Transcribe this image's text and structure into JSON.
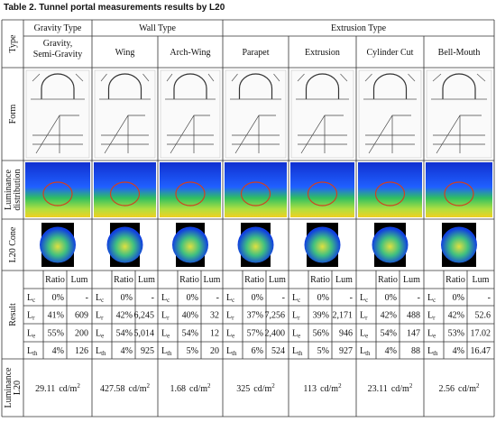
{
  "title": "Table 2. Tunnel portal measurements results by L20",
  "row_headers": {
    "type": "Type",
    "form": "Form",
    "luminance_distribution": [
      "Luminance",
      "distribution"
    ],
    "cone": "L20 Cone",
    "result": "Result",
    "luminance_l20": [
      "Luminance",
      "L20"
    ]
  },
  "result_header": {
    "ratio": "Ratio",
    "lum": "Lum"
  },
  "result_rows": [
    {
      "main": "L",
      "sub": "c"
    },
    {
      "main": "L",
      "sub": "r"
    },
    {
      "main": "L",
      "sub": "e"
    },
    {
      "main": "L",
      "sub": "th"
    }
  ],
  "l20_unit": {
    "main": "cd/m",
    "sup": "2"
  },
  "groups": [
    {
      "name": "Gravity Type",
      "types": [
        {
          "name": [
            "Gravity,",
            "Semi-Gravity"
          ],
          "results": [
            {
              "ratio": "0%",
              "lum": "-"
            },
            {
              "ratio": "41%",
              "lum": "609"
            },
            {
              "ratio": "55%",
              "lum": "200"
            },
            {
              "ratio": "4%",
              "lum": "126"
            }
          ],
          "l20": "29.11"
        }
      ]
    },
    {
      "name": "Wall Type",
      "types": [
        {
          "name": [
            "Wing"
          ],
          "results": [
            {
              "ratio": "0%",
              "lum": "-"
            },
            {
              "ratio": "42%",
              "lum": "6,245"
            },
            {
              "ratio": "54%",
              "lum": "5,014"
            },
            {
              "ratio": "4%",
              "lum": "925"
            }
          ],
          "l20": "427.58"
        },
        {
          "name": [
            "Arch-Wing"
          ],
          "results": [
            {
              "ratio": "0%",
              "lum": "-"
            },
            {
              "ratio": "40%",
              "lum": "32"
            },
            {
              "ratio": "54%",
              "lum": "12"
            },
            {
              "ratio": "5%",
              "lum": "20"
            }
          ],
          "l20": "1.68"
        }
      ]
    },
    {
      "name": "Extrusion Type",
      "types": [
        {
          "name": [
            "Parapet"
          ],
          "results": [
            {
              "ratio": "0%",
              "lum": "-"
            },
            {
              "ratio": "37%",
              "lum": "7,256"
            },
            {
              "ratio": "57%",
              "lum": "2,400"
            },
            {
              "ratio": "6%",
              "lum": "524"
            }
          ],
          "l20": "325"
        },
        {
          "name": [
            "Extrusion"
          ],
          "results": [
            {
              "ratio": "0%",
              "lum": "-"
            },
            {
              "ratio": "39%",
              "lum": "2,171"
            },
            {
              "ratio": "56%",
              "lum": "946"
            },
            {
              "ratio": "5%",
              "lum": "927"
            }
          ],
          "l20": "113"
        },
        {
          "name": [
            "Cylinder Cut"
          ],
          "results": [
            {
              "ratio": "0%",
              "lum": "-"
            },
            {
              "ratio": "42%",
              "lum": "488"
            },
            {
              "ratio": "54%",
              "lum": "147"
            },
            {
              "ratio": "4%",
              "lum": "88"
            }
          ],
          "l20": "23.11"
        },
        {
          "name": [
            "Bell-Mouth"
          ],
          "results": [
            {
              "ratio": "0%",
              "lum": "-"
            },
            {
              "ratio": "42%",
              "lum": "52.6"
            },
            {
              "ratio": "53%",
              "lum": "17.02"
            },
            {
              "ratio": "4%",
              "lum": "16.47"
            }
          ],
          "l20": "2.56"
        }
      ]
    }
  ]
}
